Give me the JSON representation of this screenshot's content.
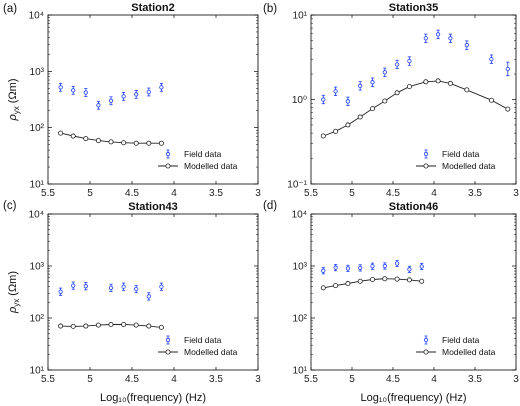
{
  "figure": {
    "xlabel": "Log₁₀(frequency) (Hz)",
    "ylabel_rho": "ρ",
    "ylabel_sub": "yx",
    "ylabel_unit": "(Ωm)"
  },
  "legend": {
    "field": "Field data",
    "model": "Modelled data"
  },
  "colors": {
    "field": "#1a3cff",
    "model": "#222222",
    "axis": "#000000"
  },
  "chart_data": [
    {
      "type": "scatter",
      "panel_label": "(a)",
      "title": "Station2",
      "xlim": [
        5.5,
        3
      ],
      "ylim": [
        10,
        10000
      ],
      "yscale": "log",
      "xticks": [
        "5.5",
        "5",
        "4.5",
        "4",
        "3.5",
        "3"
      ],
      "yticks": [
        "10¹",
        "10²",
        "10³",
        "10⁴"
      ],
      "legend_position": "bottom-right",
      "show_ylabel": true,
      "show_xlabel": false,
      "series": [
        {
          "name": "Field data",
          "kind": "errorbar",
          "x": [
            5.35,
            5.2,
            5.05,
            4.9,
            4.75,
            4.6,
            4.45,
            4.3,
            4.15
          ],
          "y": [
            520,
            460,
            420,
            250,
            300,
            360,
            390,
            430,
            520
          ],
          "err": [
            0.07,
            0.07,
            0.07,
            0.07,
            0.07,
            0.07,
            0.07,
            0.07,
            0.07
          ]
        },
        {
          "name": "Modelled data",
          "kind": "line-marker",
          "x": [
            5.35,
            5.2,
            5.05,
            4.9,
            4.75,
            4.6,
            4.45,
            4.3,
            4.15
          ],
          "y": [
            80,
            71,
            64,
            59,
            56,
            54,
            53,
            53,
            53
          ]
        }
      ]
    },
    {
      "type": "scatter",
      "panel_label": "(b)",
      "title": "Station35",
      "xlim": [
        5.5,
        3
      ],
      "ylim": [
        0.1,
        10
      ],
      "yscale": "log",
      "xticks": [
        "5.5",
        "5",
        "4.5",
        "4",
        "3.5",
        "3"
      ],
      "yticks": [
        "10⁻¹",
        "10⁰",
        "10¹"
      ],
      "legend_position": "bottom-right",
      "show_ylabel": false,
      "show_xlabel": false,
      "series": [
        {
          "name": "Field data",
          "kind": "errorbar",
          "x": [
            5.35,
            5.2,
            5.05,
            4.9,
            4.75,
            4.6,
            4.45,
            4.3,
            4.1,
            3.95,
            3.8,
            3.6,
            3.3,
            3.1
          ],
          "y": [
            1.0,
            1.25,
            0.95,
            1.45,
            1.6,
            2.1,
            2.6,
            2.85,
            5.3,
            5.9,
            5.3,
            4.4,
            3.0,
            2.3
          ],
          "err": [
            0.05,
            0.05,
            0.05,
            0.05,
            0.05,
            0.05,
            0.05,
            0.05,
            0.05,
            0.05,
            0.05,
            0.05,
            0.05,
            0.08
          ]
        },
        {
          "name": "Modelled data",
          "kind": "line-marker",
          "x": [
            5.35,
            5.2,
            5.05,
            4.9,
            4.75,
            4.6,
            4.45,
            4.3,
            4.1,
            3.95,
            3.8,
            3.6,
            3.3,
            3.1
          ],
          "y": [
            0.37,
            0.42,
            0.5,
            0.62,
            0.78,
            0.96,
            1.2,
            1.42,
            1.62,
            1.66,
            1.55,
            1.3,
            0.98,
            0.77
          ]
        }
      ]
    },
    {
      "type": "scatter",
      "panel_label": "(c)",
      "title": "Station43",
      "xlim": [
        5.5,
        3
      ],
      "ylim": [
        10,
        10000
      ],
      "yscale": "log",
      "xticks": [
        "5.5",
        "5",
        "4.5",
        "4",
        "3.5",
        "3"
      ],
      "yticks": [
        "10¹",
        "10²",
        "10³",
        "10⁴"
      ],
      "legend_position": "bottom-right",
      "show_ylabel": true,
      "show_xlabel": true,
      "series": [
        {
          "name": "Field data",
          "kind": "errorbar",
          "x": [
            5.35,
            5.2,
            5.05,
            4.75,
            4.6,
            4.45,
            4.3,
            4.15
          ],
          "y": [
            320,
            420,
            410,
            380,
            400,
            360,
            260,
            400
          ],
          "err": [
            0.07,
            0.07,
            0.07,
            0.07,
            0.07,
            0.07,
            0.07,
            0.07
          ]
        },
        {
          "name": "Modelled data",
          "kind": "line-marker",
          "x": [
            5.35,
            5.2,
            5.05,
            4.9,
            4.75,
            4.6,
            4.45,
            4.3,
            4.15
          ],
          "y": [
            70,
            69,
            70,
            73,
            75,
            75,
            73,
            70,
            66
          ]
        }
      ]
    },
    {
      "type": "scatter",
      "panel_label": "(d)",
      "title": "Station46",
      "xlim": [
        5.5,
        3
      ],
      "ylim": [
        10,
        10000
      ],
      "yscale": "log",
      "xticks": [
        "5.5",
        "5",
        "4.5",
        "4",
        "3.5",
        "3"
      ],
      "yticks": [
        "10¹",
        "10²",
        "10³",
        "10⁴"
      ],
      "legend_position": "bottom-right",
      "show_ylabel": false,
      "show_xlabel": true,
      "series": [
        {
          "name": "Field data",
          "kind": "errorbar",
          "x": [
            5.35,
            5.2,
            5.05,
            4.9,
            4.75,
            4.6,
            4.45,
            4.3,
            4.15
          ],
          "y": [
            810,
            930,
            900,
            920,
            990,
            1000,
            1120,
            860,
            980
          ],
          "err": [
            0.06,
            0.06,
            0.06,
            0.06,
            0.06,
            0.06,
            0.06,
            0.06,
            0.06
          ]
        },
        {
          "name": "Modelled data",
          "kind": "line-marker",
          "x": [
            5.35,
            5.2,
            5.05,
            4.9,
            4.75,
            4.6,
            4.45,
            4.3,
            4.15
          ],
          "y": [
            380,
            420,
            460,
            510,
            550,
            570,
            560,
            540,
            510
          ]
        }
      ]
    }
  ]
}
